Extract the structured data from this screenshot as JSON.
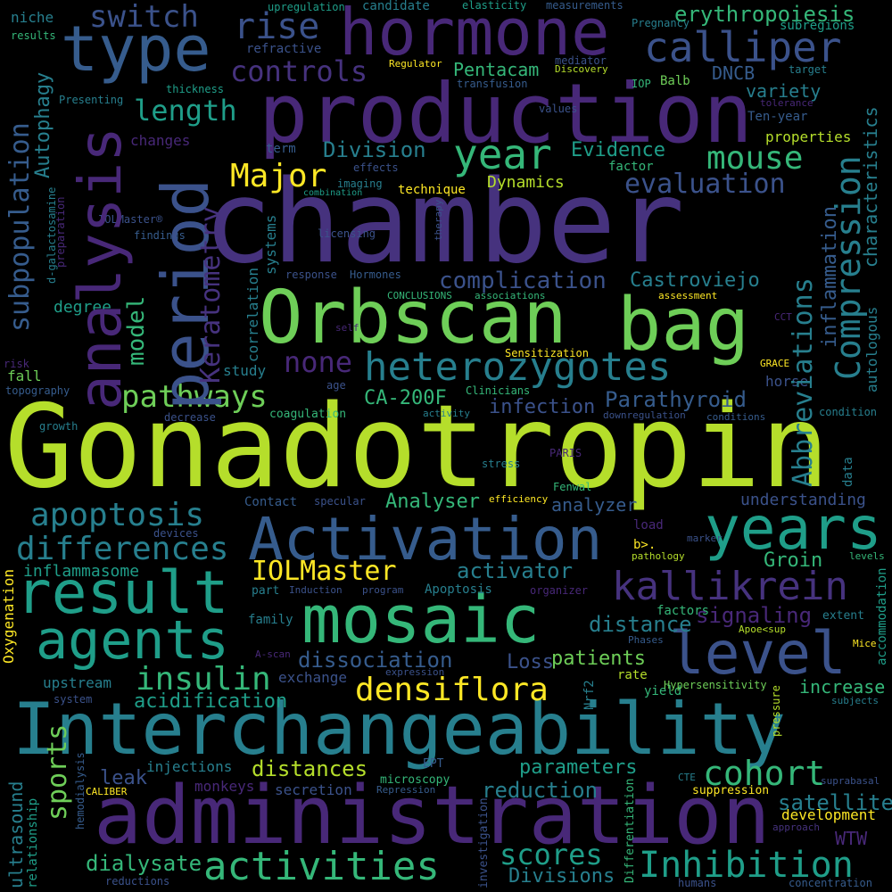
{
  "palette": {
    "purple": "#46327e",
    "indigo": "#3b528b",
    "blue": "#365c8d",
    "teal": "#277f8e",
    "cyan": "#1f9e89",
    "green": "#35b779",
    "lime": "#6ece58",
    "yellowgreen": "#b5de2b",
    "yellow": "#fde725",
    "darkpurple": "#440154",
    "violet": "#482878"
  },
  "words": {
    "gonadotropin": "Gonadotropin",
    "chamber": "chamber",
    "interchangeability": "Interchangeability",
    "administration": "administration",
    "production": "production",
    "orbscan": "Orbscan",
    "bag": "bag",
    "mosaic": "mosaic",
    "activation": "Activation",
    "hormone": "hormone",
    "result": "result",
    "agents": "agents",
    "analysis": "analysis",
    "period": "period",
    "type": "type",
    "years": "years",
    "level": "level",
    "heterozygotes": "heterozygotes",
    "kallikrein": "kallikrein",
    "calliper": "calliper",
    "compression": "Compression",
    "activities": "activities",
    "inhibition": "Inhibition",
    "year": "year",
    "rise": "rise",
    "subpopulation": "subpopulation",
    "keratometry": "Keratometry",
    "abbreviations": "Abbreviations",
    "apoptosis": "apoptosis",
    "differences": "differences",
    "densiflora": "densiflora",
    "insulin": "insulin",
    "pathways": "pathways",
    "mouse": "mouse",
    "cohort": "cohort",
    "major": "Major",
    "switch": "switch",
    "controls": "controls",
    "length": "length",
    "evaluation": "evaluation",
    "iolmaster": "IOLMaster",
    "erythropoiesis": "erythropoiesis",
    "complication": "complication",
    "none": "none",
    "model": "model",
    "scores": "scores",
    "sports": "sports",
    "dissociation": "dissociation",
    "parathyroid": "Parathyroid",
    "castroviejo": "Castroviejo",
    "evidence": "Evidence",
    "division": "Division",
    "inflammation": "inflammation",
    "activator": "activator",
    "distance": "distance",
    "signaling": "signaling",
    "distances": "distances",
    "satellite": "satellite",
    "parameters": "parameters",
    "dialysate": "dialysate",
    "acidification": "acidification",
    "reduction": "reduction",
    "upregulation": "upregulation",
    "candidate": "candidate",
    "elasticity": "elasticity",
    "measurements": "measurements",
    "niche": "niche",
    "results": "results",
    "pregnancy": "Pregnancy",
    "subregions": "subregions",
    "refractive": "refractive",
    "regulator": "Regulator",
    "mediator": "mediator",
    "discovery": "Discovery",
    "target": "target",
    "transfusion": "transfusion",
    "autophagy": "Autophagy",
    "pentacam": "Pentacam",
    "iop": "IOP",
    "balb": "Balb",
    "dncb": "DNCB",
    "variety": "variety",
    "tolerance": "tolerance",
    "thickness": "thickness",
    "presenting": "Presenting",
    "values": "values",
    "ten_year": "Ten-year",
    "characteristics": "characteristics",
    "changes": "changes",
    "properties": "properties",
    "term": "term",
    "factor": "factor",
    "effects": "effects",
    "galactosamine": "d-galactosamine",
    "preparation": "preparation",
    "imaging": "imaging",
    "combination": "combination",
    "technique": "technique",
    "dynamics": "Dynamics",
    "iolmaster_r": "IOLMaster®",
    "findings": "findings",
    "therapy": "therapy",
    "licensing": "licensing",
    "systems": "systems",
    "correlation": "correlation",
    "response": "response",
    "hormones": "Hormones",
    "conclusions": "CONCLUSIONS",
    "associations": "associations",
    "assessment": "assessment",
    "autologous": "autologous",
    "degree": "degree",
    "self": "self",
    "cct": "CCT",
    "sensitization": "Sensitization",
    "grace": "GRACE",
    "risk": "risk",
    "fall": "fall",
    "study": "study",
    "topography": "topography",
    "age": "age",
    "clinicians": "Clinicians",
    "horse": "horse",
    "coagulation": "coagulation",
    "ca200f": "CA-200F",
    "infection": "infection",
    "decrease": "decrease",
    "activity": "activity",
    "downregulation": "downregulation",
    "conditions": "conditions",
    "condition": "condition",
    "growth": "growth",
    "stress": "stress",
    "paris": "PARIS",
    "data": "data",
    "fenwal": "Fenwal",
    "efficiency": "efficiency",
    "contact": "Contact",
    "specular": "specular",
    "analyser": "Analyser",
    "analyzer": "analyzer",
    "understanding": "understanding",
    "load": "load",
    "devices": "devices",
    "marker": "marker",
    "b": "b>.",
    "inflammasome": "inflammasome",
    "pathology": "pathology",
    "groin": "Groin",
    "levels": "levels",
    "oxygenation": "Oxygenation",
    "part": "part",
    "induction": "Induction",
    "program": "program",
    "apoptosis2": "Apoptosis",
    "organizer": "organizer",
    "factors": "factors",
    "family": "family",
    "extent": "extent",
    "accommodation": "accommodation",
    "phases": "Phases",
    "apoe": "Apoe<sup",
    "mice": "Mice",
    "ascan": "A-scan",
    "loss": "Loss",
    "patients": "patients",
    "expression": "expression",
    "exchange": "exchange",
    "rate": "rate",
    "nrf2": "Nrf2",
    "hypersensitivity": "Hypersensitivity",
    "increase": "increase",
    "upstream": "upstream",
    "yield": "yield",
    "pressure": "pressure",
    "subjects": "subjects",
    "system": "system",
    "hemodialysis": "hemodialysis",
    "leak": "leak",
    "injections": "injections",
    "ept": "EPT",
    "ultrasound": "ultrasound",
    "relationship": "relationship",
    "monkeys": "monkeys",
    "secretion": "secretion",
    "microscopy": "microscopy",
    "repression": "Repression",
    "caliber": "CALIBER",
    "cte": "CTE",
    "suprabasal": "suprabasal",
    "suppression": "suppression",
    "development": "development",
    "wtw": "WTW",
    "approach": "approach",
    "investigation": "investigation",
    "differentiation": "Differentiation",
    "divisions": "Divisions",
    "reductions": "reductions",
    "humans": "humans",
    "concentration": "concentration"
  }
}
